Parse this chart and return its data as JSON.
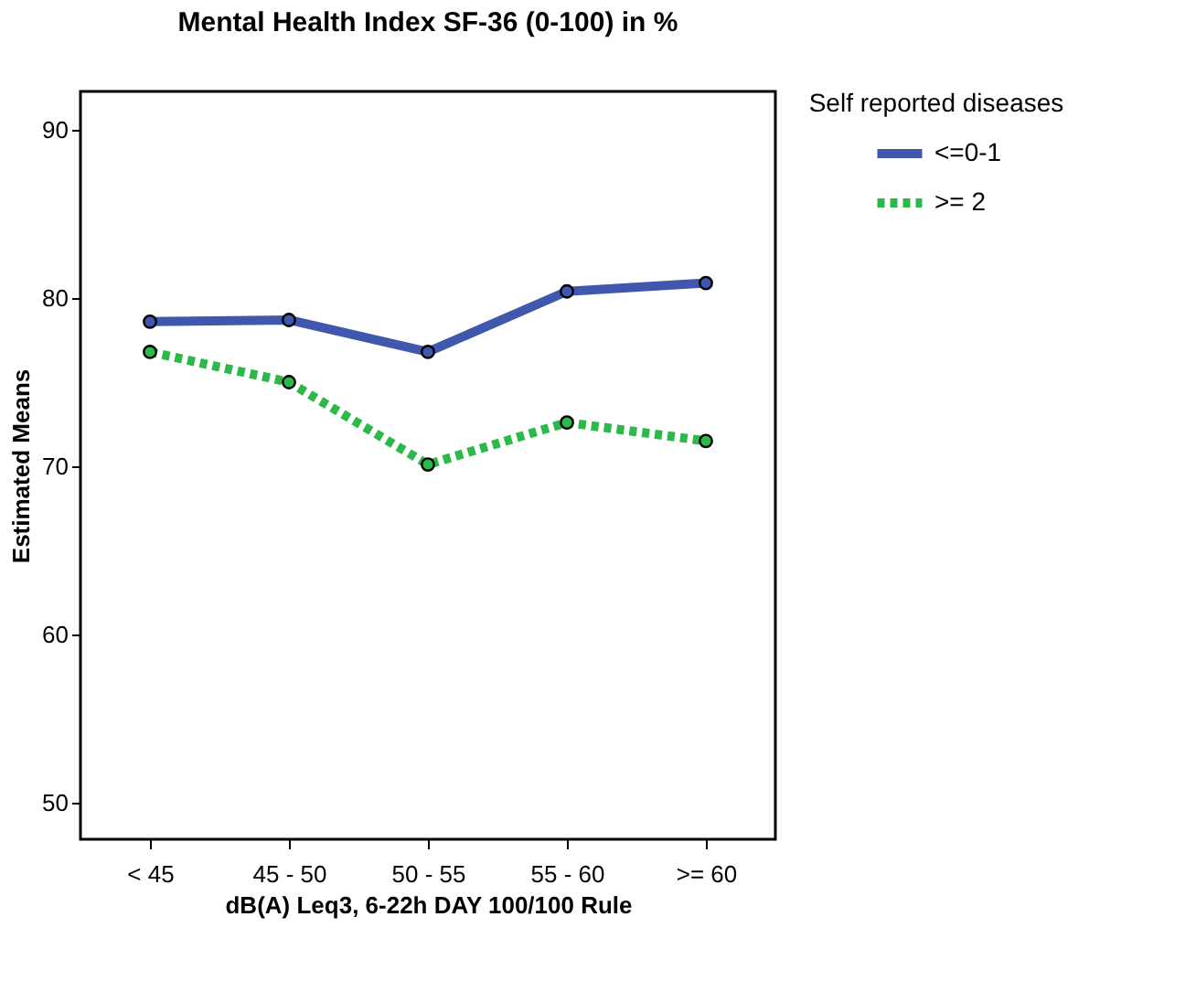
{
  "chart_data": {
    "type": "line",
    "title": "Mental Health Index SF-36 (0-100) in %",
    "xlabel": "dB(A) Leq3, 6-22h DAY 100/100 Rule",
    "ylabel": "Estimated Means",
    "legend_title": "Self reported diseases",
    "categories": [
      "< 45",
      "45 - 50",
      "50 - 55",
      "55 - 60",
      ">= 60"
    ],
    "series": [
      {
        "name": "<=0-1",
        "color": "#3f58ad",
        "values": [
          78.6,
          78.7,
          76.8,
          80.4,
          80.9
        ],
        "line_style": "solid"
      },
      {
        "name": ">= 2",
        "color": "#2db84a",
        "values": [
          76.8,
          75.0,
          70.1,
          72.6,
          71.5
        ],
        "line_style": "dotted"
      }
    ],
    "ylim": [
      47.8,
      92.3
    ],
    "yticks": [
      50,
      60,
      70,
      80,
      90
    ],
    "grid": false,
    "legend": "top right",
    "marker": "circle"
  }
}
